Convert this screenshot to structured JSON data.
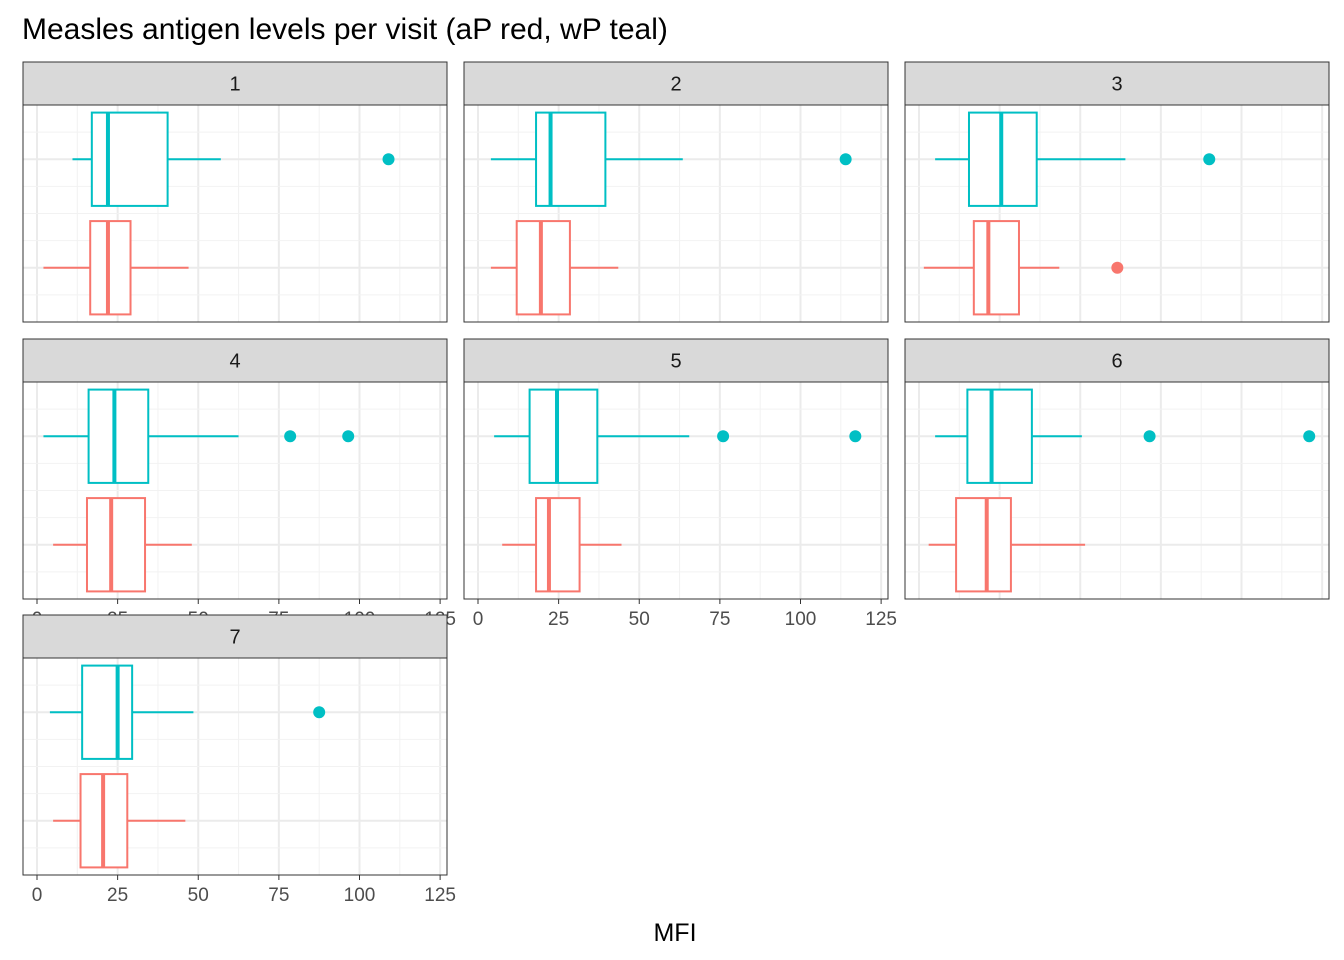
{
  "chart_data": {
    "type": "boxplot",
    "title": "Measles antigen levels per visit (aP red, wP teal)",
    "xlabel": "MFI",
    "ylabel": "",
    "xlim": [
      -4,
      126
    ],
    "x_ticks": [
      0,
      25,
      50,
      75,
      100,
      125
    ],
    "x_tick_labels": [
      "0",
      "25",
      "50",
      "75",
      "100",
      "125"
    ],
    "facet_by": "visit",
    "grid": true,
    "series": [
      {
        "key": "aP",
        "color": "#F8766D"
      },
      {
        "key": "wP",
        "color": "#00BFC4"
      }
    ],
    "panels": [
      {
        "label": "1",
        "aP": {
          "whisker_low": 2,
          "q1": 16.5,
          "median": 22,
          "q3": 29,
          "whisker_high": 47,
          "outliers": []
        },
        "wP": {
          "whisker_low": 11,
          "q1": 17,
          "median": 22,
          "q3": 40.5,
          "whisker_high": 57,
          "outliers": [
            109
          ]
        }
      },
      {
        "label": "2",
        "aP": {
          "whisker_low": 4,
          "q1": 12,
          "median": 19.5,
          "q3": 28.5,
          "whisker_high": 43.5,
          "outliers": []
        },
        "wP": {
          "whisker_low": 4,
          "q1": 18,
          "median": 22.5,
          "q3": 39.5,
          "whisker_high": 63.5,
          "outliers": [
            114
          ]
        }
      },
      {
        "label": "3",
        "aP": {
          "whisker_low": 1.5,
          "q1": 17,
          "median": 21.5,
          "q3": 31,
          "whisker_high": 43.5,
          "outliers": [
            61.5
          ]
        },
        "wP": {
          "whisker_low": 5,
          "q1": 15.5,
          "median": 25.5,
          "q3": 36.5,
          "whisker_high": 64,
          "outliers": [
            90
          ]
        }
      },
      {
        "label": "4",
        "aP": {
          "whisker_low": 5,
          "q1": 15.5,
          "median": 23,
          "q3": 33.5,
          "whisker_high": 48,
          "outliers": []
        },
        "wP": {
          "whisker_low": 2,
          "q1": 16,
          "median": 24,
          "q3": 34.5,
          "whisker_high": 62.5,
          "outliers": [
            78.5,
            96.5
          ]
        }
      },
      {
        "label": "5",
        "aP": {
          "whisker_low": 7.5,
          "q1": 18,
          "median": 22,
          "q3": 31.5,
          "whisker_high": 44.5,
          "outliers": []
        },
        "wP": {
          "whisker_low": 5,
          "q1": 16,
          "median": 24.5,
          "q3": 37,
          "whisker_high": 65.5,
          "outliers": [
            76,
            117
          ]
        }
      },
      {
        "label": "6",
        "aP": {
          "whisker_low": 3,
          "q1": 11.5,
          "median": 21,
          "q3": 28.5,
          "whisker_high": 51.5,
          "outliers": []
        },
        "wP": {
          "whisker_low": 5,
          "q1": 15,
          "median": 22.5,
          "q3": 35,
          "whisker_high": 50.5,
          "outliers": [
            71.5,
            121
          ]
        }
      },
      {
        "label": "7",
        "aP": {
          "whisker_low": 5,
          "q1": 13.5,
          "median": 20.5,
          "q3": 28,
          "whisker_high": 46,
          "outliers": []
        },
        "wP": {
          "whisker_low": 4,
          "q1": 14,
          "median": 25,
          "q3": 29.5,
          "whisker_high": 48.5,
          "outliers": [
            87.5
          ]
        }
      }
    ]
  }
}
